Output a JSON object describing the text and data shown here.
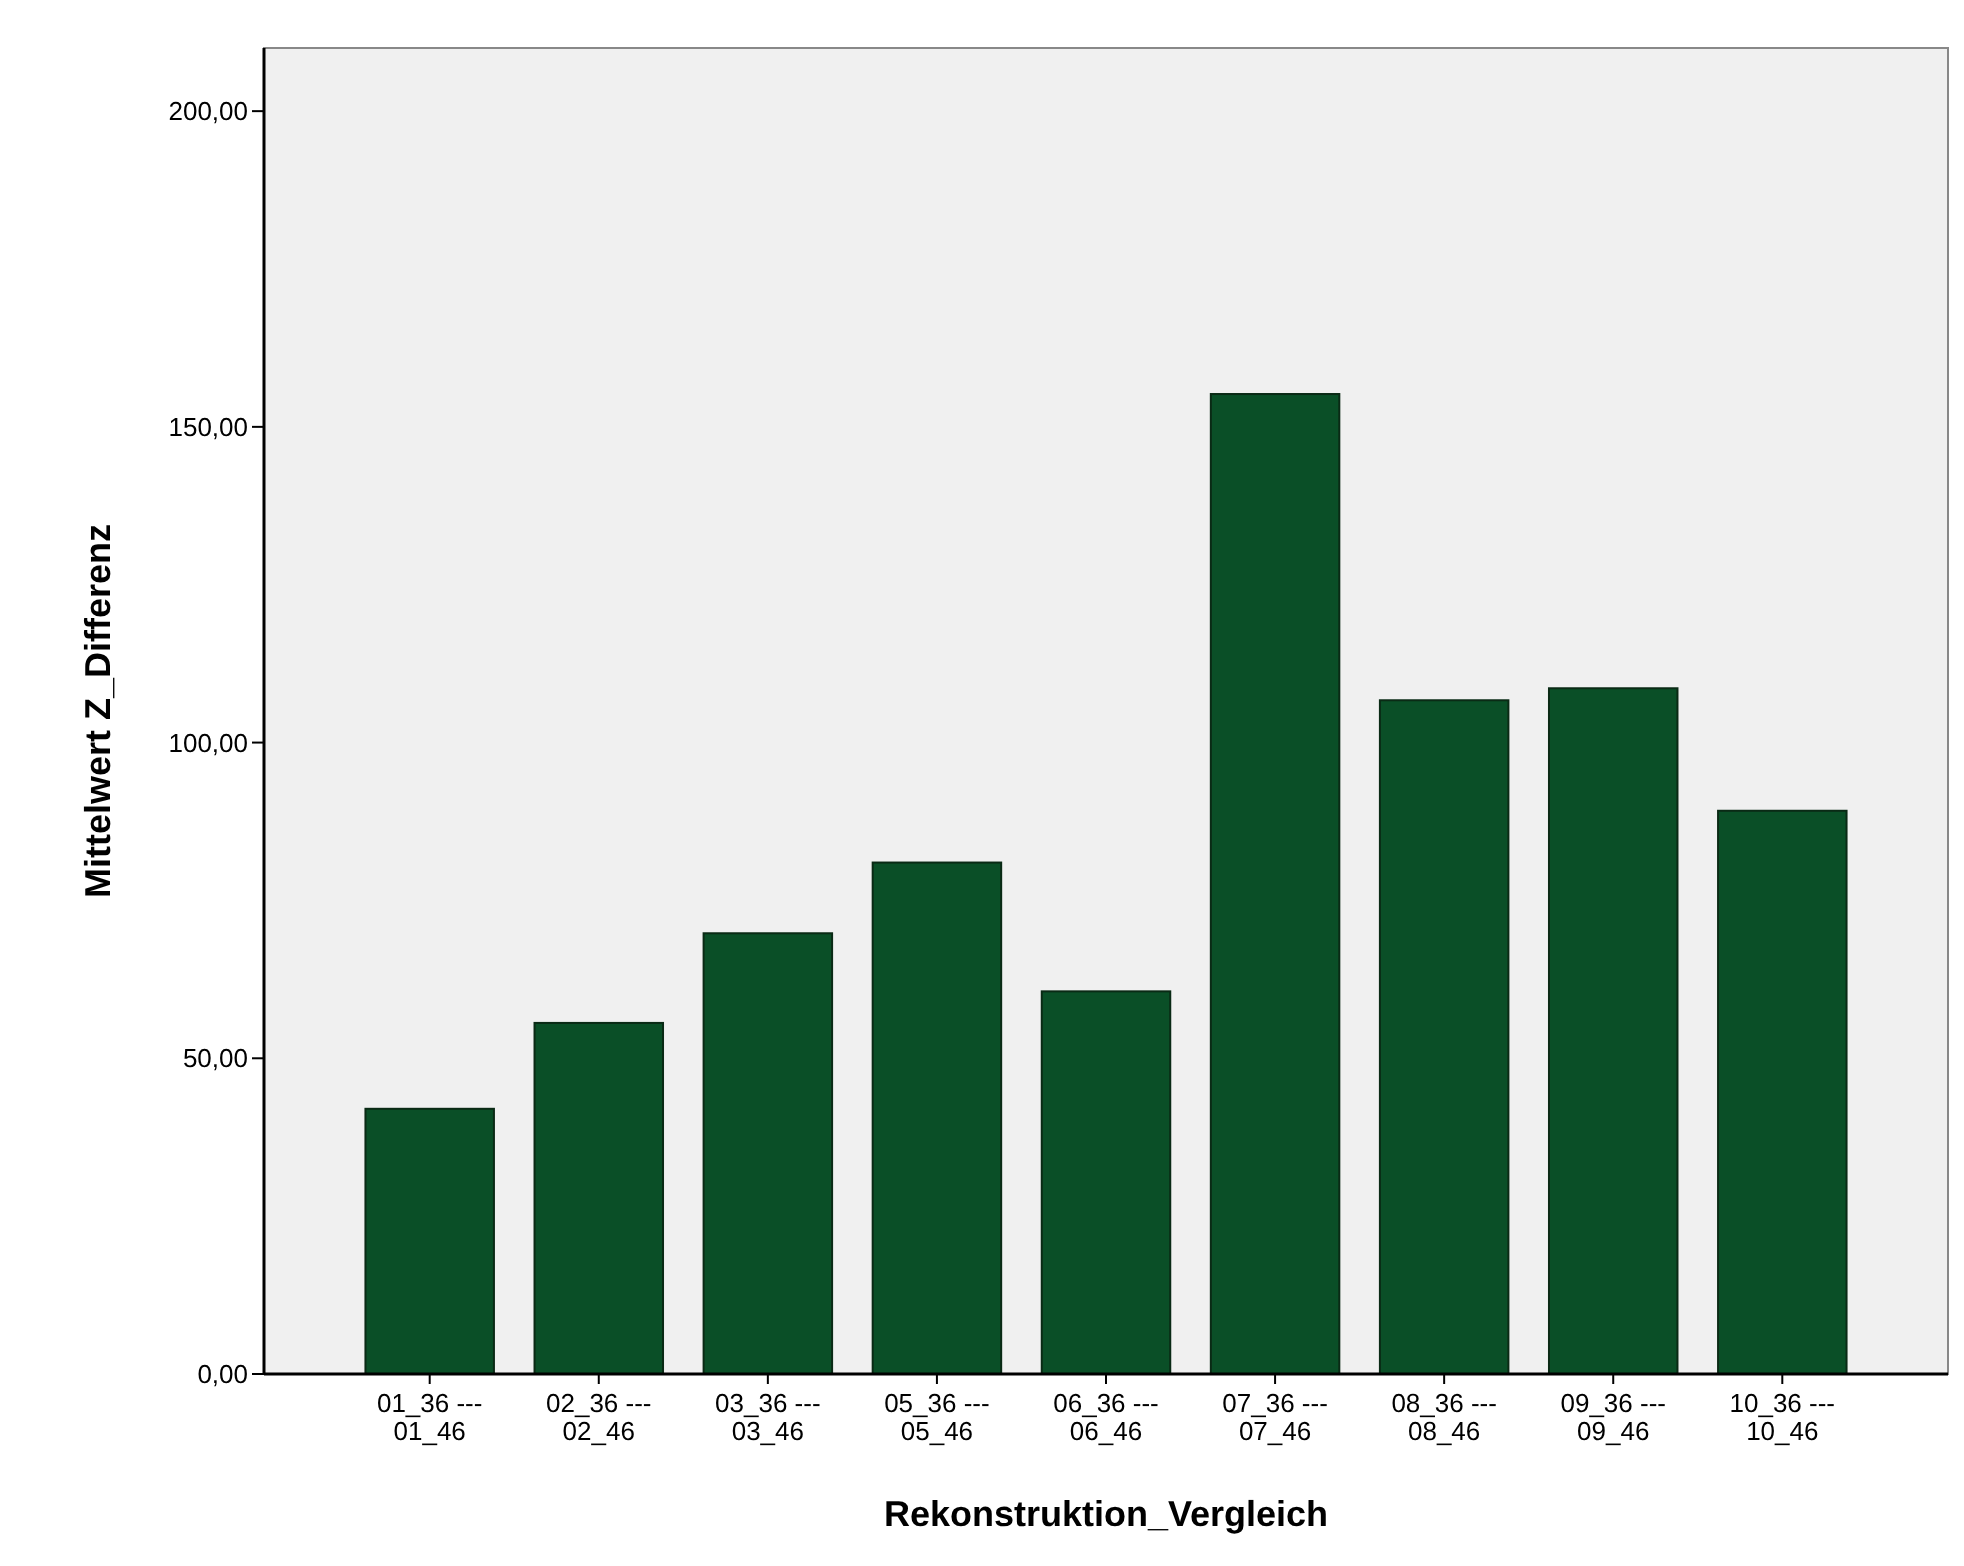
{
  "chart_data": {
    "type": "bar",
    "xlabel": "Rekonstruktion_Vergleich",
    "ylabel": "Mittelwert Z_Differenz",
    "categories": [
      "01_36 ---\n01_46",
      "02_36 ---\n02_46",
      "03_36 ---\n03_46",
      "05_36 ---\n05_46",
      "06_36 ---\n06_46",
      "07_36 ---\n07_46",
      "08_36 ---\n08_46",
      "09_36 ---\n09_46",
      "10_36 ---\n10_46"
    ],
    "values": [
      42,
      55.6,
      69.8,
      81,
      60.6,
      155.2,
      106.7,
      108.6,
      89.2
    ],
    "color": "#0a4f27",
    "ylim": [
      0,
      210
    ],
    "yticks": [
      {
        "value": 0,
        "label": "0,00"
      },
      {
        "value": 50,
        "label": "50,00"
      },
      {
        "value": 100,
        "label": "100,00"
      },
      {
        "value": 150,
        "label": "150,00"
      },
      {
        "value": 200,
        "label": "200,00"
      }
    ]
  }
}
